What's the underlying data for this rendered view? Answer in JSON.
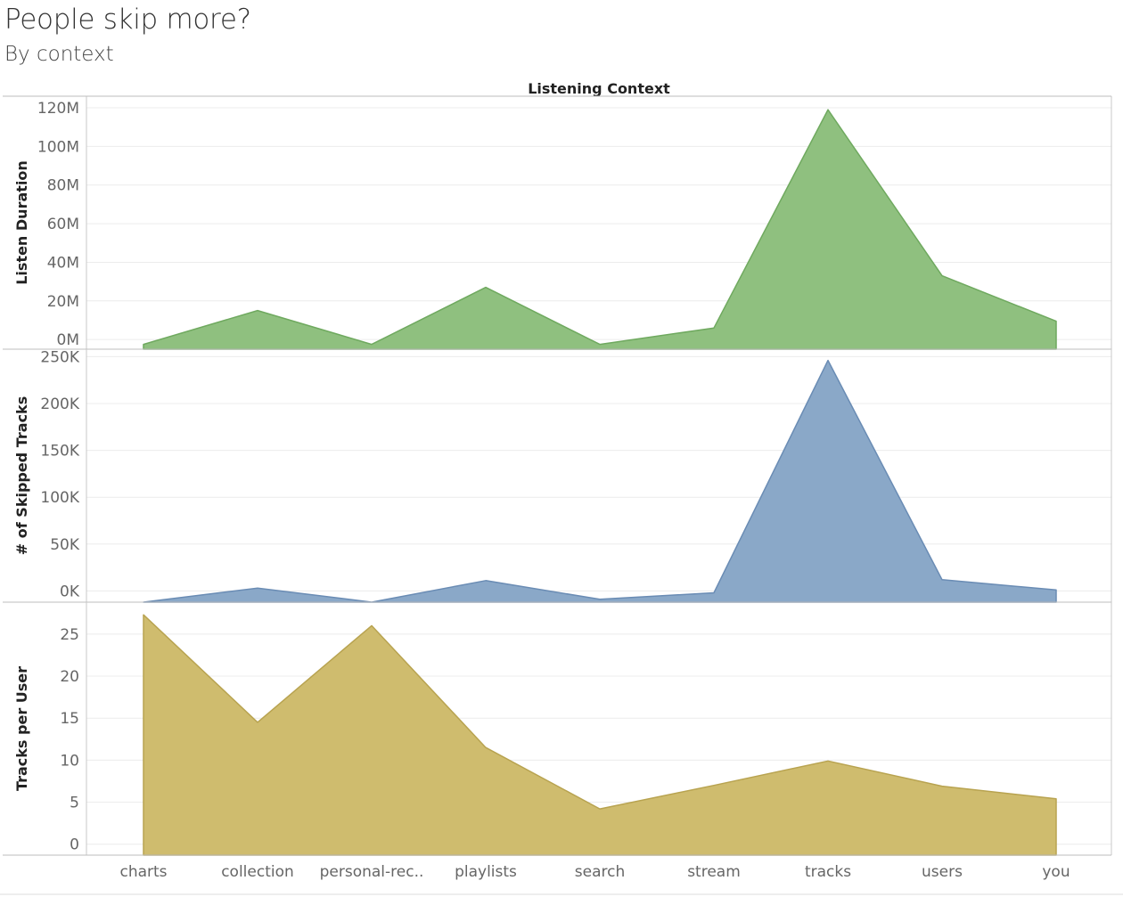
{
  "title": "People skip more?",
  "subtitle": "By context",
  "chart_data": {
    "type": "area",
    "header": "Listening Context",
    "categories": [
      "charts",
      "collection",
      "personal-rec..",
      "playlists",
      "search",
      "stream",
      "tracks",
      "users",
      "you"
    ],
    "grid": true,
    "panels": [
      {
        "ylabel": "Listen Duration",
        "color": "#8fc07f",
        "stroke": "#6fa95f",
        "ylim": [
          -5000000,
          126000000
        ],
        "ticks": [
          0,
          20000000,
          40000000,
          60000000,
          80000000,
          100000000,
          120000000
        ],
        "tick_labels": [
          "0M",
          "20M",
          "40M",
          "60M",
          "80M",
          "100M",
          "120M"
        ],
        "values": [
          -2500000,
          15000000,
          -2500000,
          27000000,
          -2500000,
          6000000,
          119000000,
          33000000,
          9500000
        ]
      },
      {
        "ylabel": "# of Skipped Tracks",
        "color": "#8aa8c8",
        "stroke": "#6a8cb4",
        "ylim": [
          -12000,
          258000
        ],
        "ticks": [
          0,
          50000,
          100000,
          150000,
          200000,
          250000
        ],
        "tick_labels": [
          "0K",
          "50K",
          "100K",
          "150K",
          "200K",
          "250K"
        ],
        "values": [
          -12000,
          3000,
          -12000,
          11000,
          -9000,
          -2000,
          246000,
          12000,
          1000
        ]
      },
      {
        "ylabel": "Tracks per User",
        "color": "#cfbc6e",
        "stroke": "#b8a350",
        "ylim": [
          -1.3,
          28.8
        ],
        "ticks": [
          0,
          5,
          10,
          15,
          20,
          25
        ],
        "tick_labels": [
          "0",
          "5",
          "10",
          "15",
          "20",
          "25"
        ],
        "values": [
          27.3,
          14.5,
          26.0,
          11.5,
          4.2,
          7.0,
          9.9,
          6.9,
          5.4
        ]
      }
    ]
  }
}
